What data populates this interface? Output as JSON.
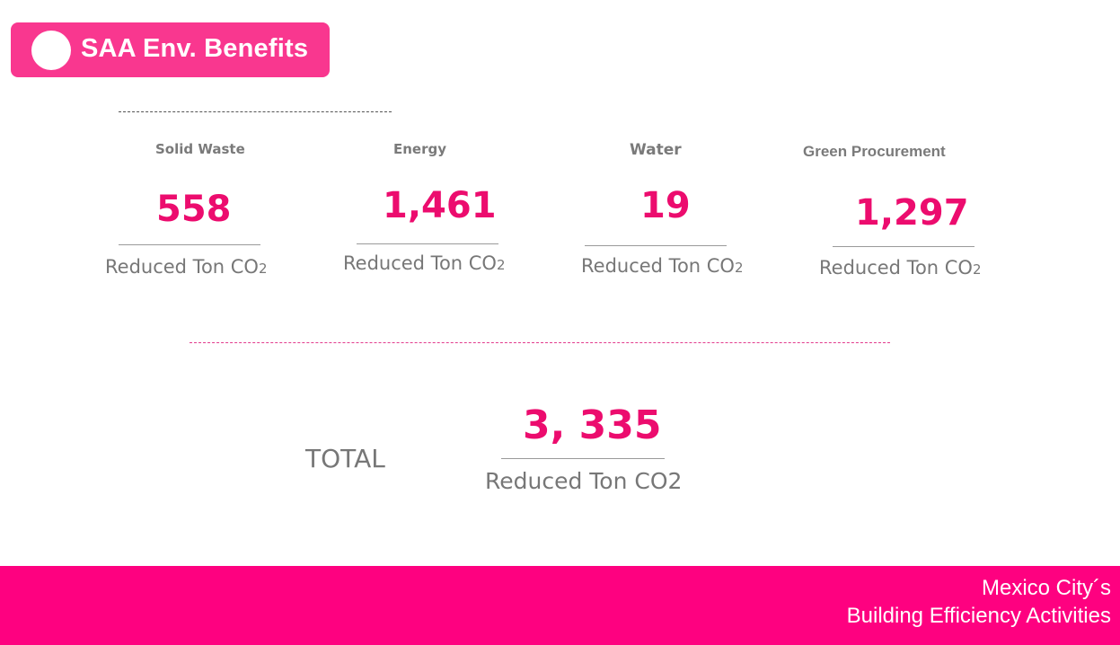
{
  "header": {
    "title": "SAA Env. Benefits"
  },
  "metrics": [
    {
      "label": "Solid Waste",
      "value": "558",
      "unit": "Reduced Ton CO",
      "unit_sub": "2"
    },
    {
      "label": "Energy",
      "value": "1,461",
      "unit": "Reduced Ton CO",
      "unit_sub": "2"
    },
    {
      "label": "Water",
      "value": "19",
      "unit": "Reduced Ton CO",
      "unit_sub": "2"
    },
    {
      "label": "Green Procurement",
      "value": "1,297",
      "unit": "Reduced Ton CO",
      "unit_sub": "2"
    }
  ],
  "total": {
    "label": "TOTAL",
    "value": "3, 335",
    "unit": "Reduced Ton CO2"
  },
  "footer": {
    "line1": "Mexico City´s",
    "line2": "Building Efficiency Activities"
  },
  "colors": {
    "accent": "#ec0c6e",
    "badge": "#f9378f",
    "footer": "#fe0180",
    "text_gray": "#777777"
  }
}
